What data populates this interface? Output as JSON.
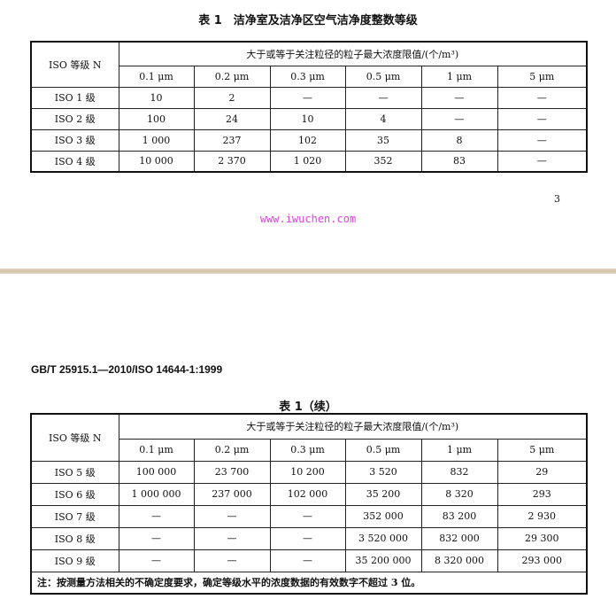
{
  "page1": {
    "table_title": "表 1　洁净室及洁净区空气洁净度整数等级",
    "page_number": "3",
    "watermark": "www.iwuchen.com"
  },
  "page2": {
    "header": "GB/T 25915.1—2010/ISO 14644-1:1999",
    "table_title": "表 1（续）",
    "note": "注：按测量方法相关的不确定度要求，确定等级水平的浓度数据的有效数字不超过 3 位。"
  },
  "table": {
    "row_header": "ISO 等级 N",
    "group_header": "大于或等于关注粒径的粒子最大浓度限值/(个/m³)",
    "columns": [
      "0.1 μm",
      "0.2 μm",
      "0.3 μm",
      "0.5 μm",
      "1 μm",
      "5 μm"
    ]
  },
  "rows_part1": [
    {
      "label": "ISO 1 级",
      "values": [
        "10",
        "2",
        "—",
        "—",
        "—",
        "—"
      ]
    },
    {
      "label": "ISO 2 级",
      "values": [
        "100",
        "24",
        "10",
        "4",
        "—",
        "—"
      ]
    },
    {
      "label": "ISO 3 级",
      "values": [
        "1 000",
        "237",
        "102",
        "35",
        "8",
        "—"
      ]
    },
    {
      "label": "ISO 4 级",
      "values": [
        "10 000",
        "2 370",
        "1 020",
        "352",
        "83",
        "—"
      ]
    }
  ],
  "rows_part2": [
    {
      "label": "ISO 5 级",
      "values": [
        "100 000",
        "23 700",
        "10 200",
        "3 520",
        "832",
        "29"
      ]
    },
    {
      "label": "ISO 6 级",
      "values": [
        "1 000 000",
        "237 000",
        "102 000",
        "35 200",
        "8 320",
        "293"
      ]
    },
    {
      "label": "ISO 7 级",
      "values": [
        "—",
        "—",
        "—",
        "352 000",
        "83 200",
        "2 930"
      ]
    },
    {
      "label": "ISO 8 级",
      "values": [
        "—",
        "—",
        "—",
        "3 520 000",
        "832 000",
        "29 300"
      ]
    },
    {
      "label": "ISO 9 级",
      "values": [
        "—",
        "—",
        "—",
        "35 200 000",
        "8 320 000",
        "293 000"
      ]
    }
  ]
}
